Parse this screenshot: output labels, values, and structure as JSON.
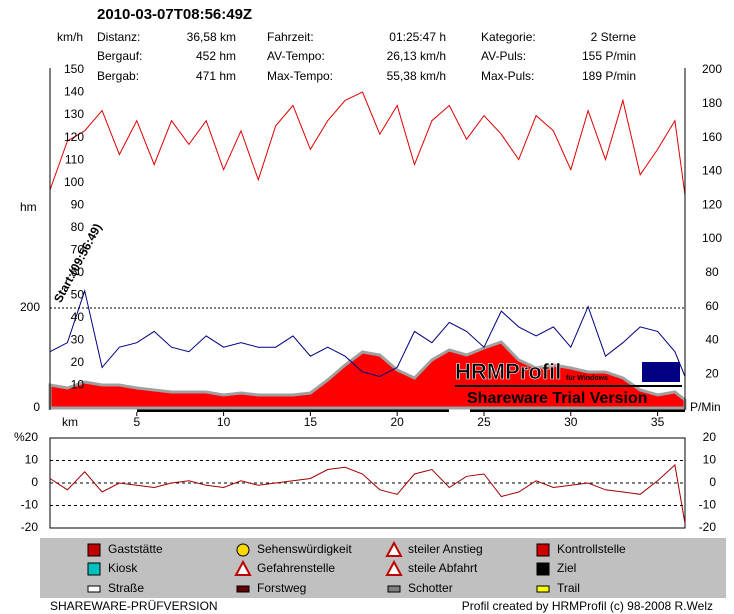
{
  "header": {
    "title": "2010-03-07T08:56:49Z",
    "stats": [
      {
        "label": "Distanz:",
        "value": "36,58 km"
      },
      {
        "label": "Bergauf:",
        "value": "452 hm"
      },
      {
        "label": "Bergab:",
        "value": "471 hm"
      },
      {
        "label": "Fahrzeit:",
        "value": "01:25:47 h"
      },
      {
        "label": "AV-Tempo:",
        "value": "26,13 km/h"
      },
      {
        "label": "Max-Tempo:",
        "value": "55,38 km/h"
      },
      {
        "label": "Kategorie:",
        "value": "2 Sterne"
      },
      {
        "label": "AV-Puls:",
        "value": "155 P/min"
      },
      {
        "label": "Max-Puls:",
        "value": "189 P/min"
      }
    ]
  },
  "chart_data": [
    {
      "type": "line",
      "xlabel": "km",
      "ylabel": "km/h",
      "y2label": "P/Min",
      "y3label": "hm",
      "annotation": "Start:(09:56:49)",
      "x": [
        0,
        1,
        2,
        3,
        4,
        5,
        6,
        7,
        8,
        9,
        10,
        11,
        12,
        13,
        14,
        15,
        16,
        17,
        18,
        19,
        20,
        21,
        22,
        23,
        24,
        25,
        26,
        27,
        28,
        29,
        30,
        31,
        32,
        33,
        34,
        35,
        36,
        36.58
      ],
      "xlim": [
        0,
        36.58
      ],
      "xticks": [
        5,
        10,
        15,
        20,
        25,
        30,
        35
      ],
      "ylim": [
        0,
        150
      ],
      "yticks": [
        10,
        20,
        30,
        40,
        50,
        60,
        70,
        80,
        90,
        100,
        110,
        120,
        130,
        140,
        150
      ],
      "y2lim": [
        0,
        200
      ],
      "y2ticks": [
        20,
        40,
        60,
        80,
        100,
        120,
        140,
        160,
        180,
        200
      ],
      "y3lim": [
        0,
        676
      ],
      "y3ticks": [
        0,
        200
      ],
      "y3grid": true,
      "series": [
        {
          "axis": "y3",
          "style": "area",
          "color": "#ff0000",
          "edge_color": "#a0a0a0",
          "values": [
            46,
            40,
            52,
            46,
            46,
            40,
            36,
            32,
            32,
            32,
            26,
            30,
            26,
            26,
            26,
            30,
            56,
            86,
            112,
            106,
            76,
            60,
            96,
            116,
            106,
            120,
            132,
            96,
            80,
            86,
            80,
            72,
            72,
            60,
            36,
            26,
            32,
            16
          ]
        },
        {
          "axis": "y2",
          "style": "line",
          "color": "#e00000",
          "values": [
            129,
            158,
            164,
            176,
            150,
            170,
            144,
            170,
            156,
            170,
            141,
            164,
            135,
            167,
            179,
            153,
            170,
            182,
            187,
            162,
            179,
            144,
            170,
            179,
            159,
            173,
            162,
            147,
            173,
            164,
            141,
            176,
            147,
            182,
            138,
            153,
            170,
            126
          ]
        },
        {
          "axis": "y",
          "style": "line",
          "color": "#000080",
          "values": [
            25,
            29,
            52,
            18,
            27,
            29,
            34,
            27,
            25,
            32,
            27,
            29,
            27,
            27,
            32,
            23,
            27,
            23,
            16,
            14,
            18,
            34,
            29,
            38,
            34,
            27,
            43,
            36,
            32,
            36,
            27,
            45,
            23,
            29,
            36,
            34,
            25,
            14
          ]
        }
      ]
    },
    {
      "type": "line",
      "ylabel": "%",
      "x": [
        0,
        1,
        2,
        3,
        4,
        5,
        6,
        7,
        8,
        9,
        10,
        11,
        12,
        13,
        14,
        15,
        16,
        17,
        18,
        19,
        20,
        21,
        22,
        23,
        24,
        25,
        26,
        27,
        28,
        29,
        30,
        31,
        32,
        33,
        34,
        35,
        36,
        36.58
      ],
      "xlim": [
        0,
        36.58
      ],
      "ylim": [
        -20,
        20
      ],
      "yticks": [
        -20,
        -10,
        0,
        10,
        20
      ],
      "grid": true,
      "series": [
        {
          "color": "#a00000",
          "values": [
            2,
            -3,
            5,
            -4,
            0,
            -1,
            -2,
            0,
            1,
            -1,
            -2,
            1,
            -1,
            0,
            1,
            2,
            6,
            7,
            4,
            -3,
            -5,
            4,
            6,
            -2,
            3,
            4,
            -6,
            -4,
            1,
            -2,
            -1,
            0,
            -3,
            -4,
            -5,
            1,
            8,
            -18
          ]
        }
      ]
    }
  ],
  "watermark": {
    "brand": "HRMProfil",
    "sub": "für Windows",
    "trial": "Shareware Trial  Version"
  },
  "legend": [
    "Gaststätte",
    "Sehenswürdigkeit",
    "steiler Anstieg",
    "Kontrollstelle",
    "Kiosk",
    "Gefahrenstelle",
    "steile Abfahrt",
    "Ziel",
    "Straße",
    "Forstweg",
    "Schotter",
    "Trail"
  ],
  "footer": {
    "left": "SHAREWARE-PRÜFVERSION",
    "right": "Profil created by HRMProfil (c) 98-2008 R.Welz"
  }
}
